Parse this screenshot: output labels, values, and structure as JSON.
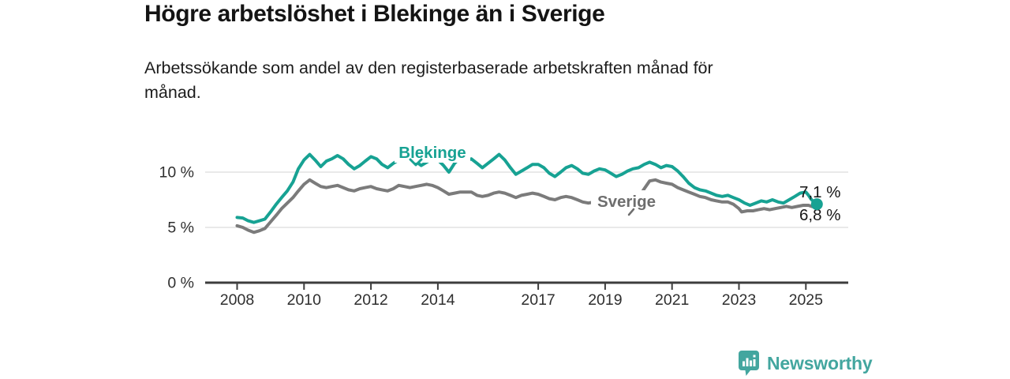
{
  "title": "Högre arbetslöshet i Blekinge än i Sverige",
  "subtitle": "Arbetssökande som andel av den registerbaserade arbetskraften månad för\nmånad.",
  "branding": {
    "logo_text": "Newsworthy",
    "color": "#43a69f",
    "icon": "bar-chart-speech-bubble-icon"
  },
  "chart_data": {
    "type": "line",
    "title": "Högre arbetslöshet i Blekinge än i Sverige",
    "subtitle": "Arbetssökande som andel av den registerbaserade arbetskraften månad för månad.",
    "unit": "%",
    "grid": true,
    "x_axis": {
      "ticks": [
        2008,
        2010,
        2012,
        2014,
        2017,
        2019,
        2021,
        2023,
        2025
      ],
      "tick_labels": [
        "2008",
        "2010",
        "2012",
        "2014",
        "2017",
        "2019",
        "2021",
        "2023",
        "2025"
      ],
      "range": [
        2007.9,
        2026.3
      ]
    },
    "y_axis": {
      "ticks": [
        {
          "value": 0,
          "label": "0 %"
        },
        {
          "value": 5,
          "label": "5 %"
        },
        {
          "value": 10,
          "label": "10 %"
        }
      ],
      "range": [
        0,
        12.6
      ]
    },
    "series": [
      {
        "name": "Sverige",
        "color": "#7b7b7b",
        "label_color": "#6e6e6e",
        "end_label": "6,8 %",
        "end_value": 6.8,
        "end_dot": false,
        "points": [
          [
            2008.0,
            5.15
          ],
          [
            2008.17,
            5.0
          ],
          [
            2008.33,
            4.75
          ],
          [
            2008.5,
            4.55
          ],
          [
            2008.67,
            4.7
          ],
          [
            2008.83,
            4.9
          ],
          [
            2009.0,
            5.5
          ],
          [
            2009.17,
            6.1
          ],
          [
            2009.33,
            6.7
          ],
          [
            2009.5,
            7.2
          ],
          [
            2009.67,
            7.7
          ],
          [
            2009.83,
            8.3
          ],
          [
            2010.0,
            8.9
          ],
          [
            2010.17,
            9.3
          ],
          [
            2010.33,
            9.0
          ],
          [
            2010.5,
            8.7
          ],
          [
            2010.67,
            8.6
          ],
          [
            2010.83,
            8.7
          ],
          [
            2011.0,
            8.8
          ],
          [
            2011.17,
            8.6
          ],
          [
            2011.33,
            8.4
          ],
          [
            2011.5,
            8.3
          ],
          [
            2011.67,
            8.5
          ],
          [
            2011.83,
            8.6
          ],
          [
            2012.0,
            8.7
          ],
          [
            2012.17,
            8.5
          ],
          [
            2012.33,
            8.4
          ],
          [
            2012.5,
            8.3
          ],
          [
            2012.67,
            8.5
          ],
          [
            2012.83,
            8.8
          ],
          [
            2013.0,
            8.7
          ],
          [
            2013.17,
            8.6
          ],
          [
            2013.33,
            8.7
          ],
          [
            2013.5,
            8.8
          ],
          [
            2013.67,
            8.9
          ],
          [
            2013.83,
            8.8
          ],
          [
            2014.0,
            8.6
          ],
          [
            2014.17,
            8.3
          ],
          [
            2014.33,
            8.0
          ],
          [
            2014.5,
            8.1
          ],
          [
            2014.67,
            8.2
          ],
          [
            2014.83,
            8.2
          ],
          [
            2015.0,
            8.2
          ],
          [
            2015.17,
            7.9
          ],
          [
            2015.33,
            7.8
          ],
          [
            2015.5,
            7.9
          ],
          [
            2015.67,
            8.1
          ],
          [
            2015.83,
            8.2
          ],
          [
            2016.0,
            8.1
          ],
          [
            2016.17,
            7.9
          ],
          [
            2016.33,
            7.7
          ],
          [
            2016.5,
            7.9
          ],
          [
            2016.67,
            8.0
          ],
          [
            2016.83,
            8.1
          ],
          [
            2017.0,
            8.0
          ],
          [
            2017.17,
            7.8
          ],
          [
            2017.33,
            7.6
          ],
          [
            2017.5,
            7.5
          ],
          [
            2017.67,
            7.7
          ],
          [
            2017.83,
            7.8
          ],
          [
            2018.0,
            7.7
          ],
          [
            2018.17,
            7.5
          ],
          [
            2018.33,
            7.3
          ],
          [
            2018.5,
            7.2
          ],
          [
            2018.67,
            7.3
          ],
          [
            2018.83,
            7.4
          ],
          [
            2019.0,
            7.3
          ],
          [
            2019.17,
            7.2
          ],
          [
            2019.33,
            7.2
          ],
          [
            2019.5,
            7.3
          ],
          [
            2019.67,
            7.4
          ],
          [
            2019.83,
            7.5
          ],
          [
            2020.0,
            7.7
          ],
          [
            2020.17,
            8.5
          ],
          [
            2020.33,
            9.2
          ],
          [
            2020.5,
            9.3
          ],
          [
            2020.67,
            9.1
          ],
          [
            2020.83,
            9.0
          ],
          [
            2021.0,
            8.9
          ],
          [
            2021.17,
            8.6
          ],
          [
            2021.33,
            8.4
          ],
          [
            2021.5,
            8.2
          ],
          [
            2021.67,
            8.0
          ],
          [
            2021.83,
            7.8
          ],
          [
            2022.0,
            7.7
          ],
          [
            2022.17,
            7.5
          ],
          [
            2022.33,
            7.4
          ],
          [
            2022.5,
            7.3
          ],
          [
            2022.67,
            7.3
          ],
          [
            2022.83,
            7.1
          ],
          [
            2023.0,
            6.7
          ],
          [
            2023.08,
            6.4
          ],
          [
            2023.25,
            6.5
          ],
          [
            2023.42,
            6.5
          ],
          [
            2023.58,
            6.6
          ],
          [
            2023.75,
            6.7
          ],
          [
            2023.92,
            6.6
          ],
          [
            2024.08,
            6.7
          ],
          [
            2024.25,
            6.8
          ],
          [
            2024.42,
            6.9
          ],
          [
            2024.58,
            6.8
          ],
          [
            2024.75,
            6.9
          ],
          [
            2024.92,
            7.0
          ],
          [
            2025.08,
            7.0
          ],
          [
            2025.17,
            6.9
          ],
          [
            2025.33,
            6.8
          ]
        ]
      },
      {
        "name": "Blekinge",
        "color": "#17a293",
        "label_color": "#17a293",
        "end_label": "7,1 %",
        "end_value": 7.1,
        "end_dot": true,
        "points": [
          [
            2008.0,
            5.9
          ],
          [
            2008.17,
            5.85
          ],
          [
            2008.33,
            5.6
          ],
          [
            2008.5,
            5.45
          ],
          [
            2008.67,
            5.6
          ],
          [
            2008.83,
            5.75
          ],
          [
            2009.0,
            6.4
          ],
          [
            2009.17,
            7.1
          ],
          [
            2009.33,
            7.7
          ],
          [
            2009.5,
            8.3
          ],
          [
            2009.67,
            9.1
          ],
          [
            2009.83,
            10.3
          ],
          [
            2010.0,
            11.1
          ],
          [
            2010.17,
            11.6
          ],
          [
            2010.33,
            11.1
          ],
          [
            2010.5,
            10.5
          ],
          [
            2010.67,
            11.0
          ],
          [
            2010.83,
            11.2
          ],
          [
            2011.0,
            11.5
          ],
          [
            2011.17,
            11.2
          ],
          [
            2011.33,
            10.7
          ],
          [
            2011.5,
            10.3
          ],
          [
            2011.67,
            10.6
          ],
          [
            2011.83,
            11.0
          ],
          [
            2012.0,
            11.4
          ],
          [
            2012.17,
            11.2
          ],
          [
            2012.33,
            10.7
          ],
          [
            2012.5,
            10.4
          ],
          [
            2012.67,
            10.8
          ],
          [
            2012.83,
            11.1
          ],
          [
            2013.0,
            11.4
          ],
          [
            2013.17,
            11.6
          ],
          [
            2013.33,
            11.0
          ],
          [
            2013.5,
            10.6
          ],
          [
            2013.67,
            10.9
          ],
          [
            2013.83,
            11.2
          ],
          [
            2014.0,
            11.1
          ],
          [
            2014.17,
            10.6
          ],
          [
            2014.33,
            10.0
          ],
          [
            2014.5,
            10.8
          ],
          [
            2014.67,
            11.3
          ],
          [
            2014.83,
            11.0
          ],
          [
            2015.0,
            11.2
          ],
          [
            2015.17,
            10.8
          ],
          [
            2015.33,
            10.4
          ],
          [
            2015.5,
            10.8
          ],
          [
            2015.67,
            11.2
          ],
          [
            2015.83,
            11.6
          ],
          [
            2016.0,
            11.1
          ],
          [
            2016.17,
            10.4
          ],
          [
            2016.33,
            9.8
          ],
          [
            2016.5,
            10.1
          ],
          [
            2016.67,
            10.4
          ],
          [
            2016.83,
            10.7
          ],
          [
            2017.0,
            10.7
          ],
          [
            2017.17,
            10.4
          ],
          [
            2017.33,
            9.9
          ],
          [
            2017.5,
            9.6
          ],
          [
            2017.67,
            10.0
          ],
          [
            2017.83,
            10.4
          ],
          [
            2018.0,
            10.6
          ],
          [
            2018.17,
            10.3
          ],
          [
            2018.33,
            9.9
          ],
          [
            2018.5,
            9.8
          ],
          [
            2018.67,
            10.1
          ],
          [
            2018.83,
            10.3
          ],
          [
            2019.0,
            10.2
          ],
          [
            2019.17,
            9.9
          ],
          [
            2019.33,
            9.6
          ],
          [
            2019.5,
            9.8
          ],
          [
            2019.67,
            10.1
          ],
          [
            2019.83,
            10.3
          ],
          [
            2020.0,
            10.4
          ],
          [
            2020.17,
            10.7
          ],
          [
            2020.33,
            10.9
          ],
          [
            2020.5,
            10.7
          ],
          [
            2020.67,
            10.4
          ],
          [
            2020.83,
            10.6
          ],
          [
            2021.0,
            10.5
          ],
          [
            2021.17,
            10.1
          ],
          [
            2021.33,
            9.6
          ],
          [
            2021.5,
            9.0
          ],
          [
            2021.67,
            8.6
          ],
          [
            2021.83,
            8.4
          ],
          [
            2022.0,
            8.3
          ],
          [
            2022.17,
            8.1
          ],
          [
            2022.33,
            7.9
          ],
          [
            2022.5,
            7.8
          ],
          [
            2022.67,
            7.9
          ],
          [
            2022.83,
            7.7
          ],
          [
            2023.0,
            7.5
          ],
          [
            2023.17,
            7.2
          ],
          [
            2023.33,
            7.0
          ],
          [
            2023.5,
            7.2
          ],
          [
            2023.67,
            7.4
          ],
          [
            2023.83,
            7.3
          ],
          [
            2024.0,
            7.5
          ],
          [
            2024.17,
            7.3
          ],
          [
            2024.33,
            7.2
          ],
          [
            2024.5,
            7.5
          ],
          [
            2024.67,
            7.8
          ],
          [
            2024.83,
            8.1
          ],
          [
            2025.0,
            8.2
          ],
          [
            2025.08,
            7.9
          ],
          [
            2025.17,
            7.5
          ],
          [
            2025.33,
            7.1
          ]
        ]
      }
    ]
  }
}
